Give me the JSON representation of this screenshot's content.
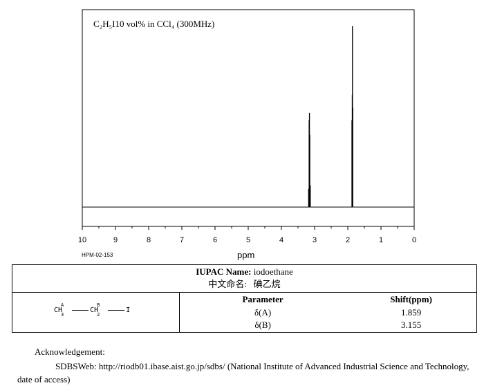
{
  "chart_data": {
    "type": "line",
    "title": "C₂H₅I10 vol% in CCl₄ (300MHz)",
    "xlabel": "ppm",
    "x_reversed": true,
    "xlim": [
      10,
      0
    ],
    "x_ticks": [
      "10",
      "9",
      "8",
      "7",
      "6",
      "5",
      "4",
      "3",
      "2",
      "1",
      "0"
    ],
    "peaks": [
      {
        "ppm": 3.18,
        "intensity": 0.1
      },
      {
        "ppm": 3.165,
        "intensity": 0.48
      },
      {
        "ppm": 3.155,
        "intensity": 0.52
      },
      {
        "ppm": 3.145,
        "intensity": 0.4
      },
      {
        "ppm": 3.13,
        "intensity": 0.12
      },
      {
        "ppm": 1.875,
        "intensity": 0.48
      },
      {
        "ppm": 1.865,
        "intensity": 0.62
      },
      {
        "ppm": 1.859,
        "intensity": 1.0
      },
      {
        "ppm": 1.85,
        "intensity": 0.55
      }
    ]
  },
  "code": "HPM-02-153",
  "compound": {
    "iupac_label": "IUPAC Name:",
    "iupac_name": "iodoethane",
    "chinese_label": "中文命名:",
    "chinese_name": "碘乙烷"
  },
  "structure": {
    "group1": "CH",
    "group1_label": "A",
    "group1_count": "3",
    "group2": "CH",
    "group2_label": "B",
    "group2_count": "2",
    "end": "I"
  },
  "parameters": {
    "header_param": "Parameter",
    "header_shift": "Shift(ppm)",
    "rows": [
      {
        "param": "δ(A)",
        "shift": "1.859"
      },
      {
        "param": "δ(B)",
        "shift": "3.155"
      }
    ]
  },
  "acknowledgement": {
    "title": "Acknowledgement:",
    "text": "SDBSWeb: http://riodb01.ibase.aist.go.jp/sdbs/ (National Institute of Advanced Industrial Science and Technology, date of access)"
  }
}
